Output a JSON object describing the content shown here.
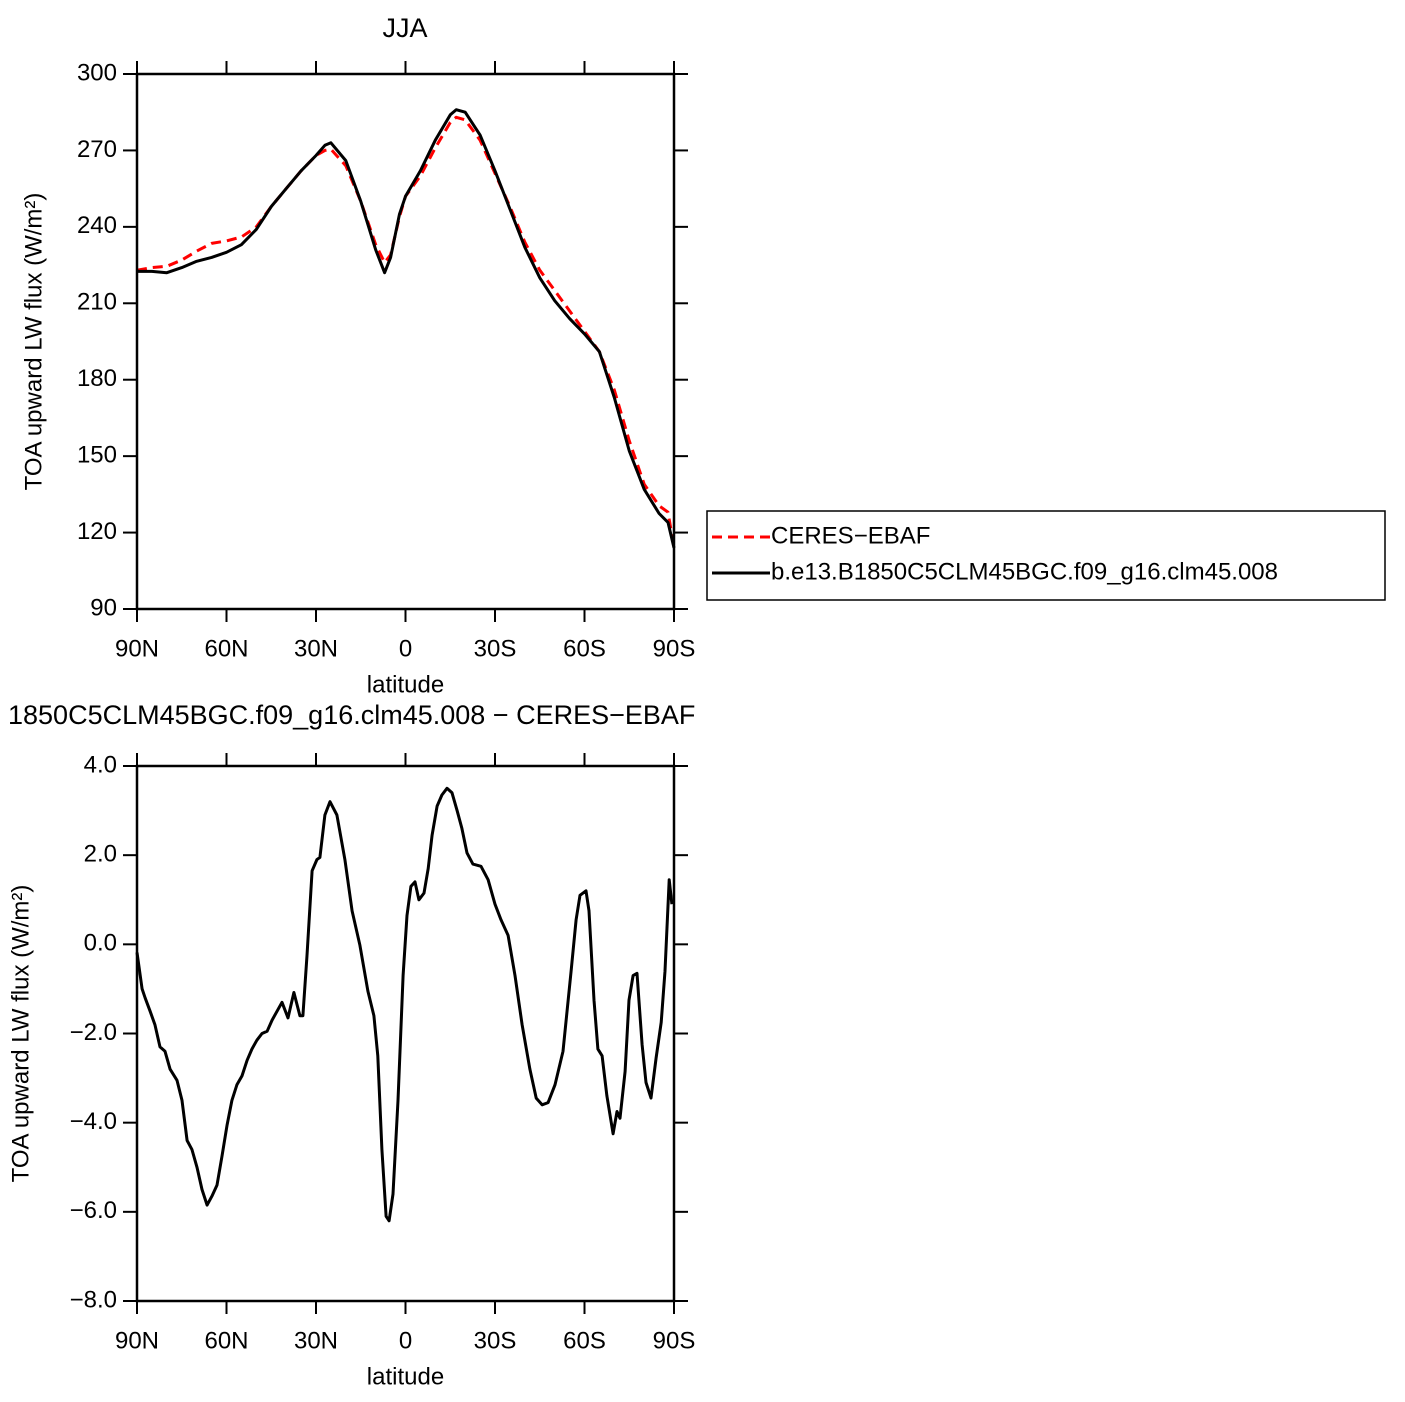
{
  "chart_data": [
    {
      "type": "line",
      "title": "JJA",
      "xlabel": "latitude",
      "ylabel": "TOA upward LW flux (W/m²)",
      "x": [
        90,
        85,
        80,
        75,
        70,
        65,
        60,
        55,
        50,
        45,
        40,
        35,
        30,
        27,
        25,
        20,
        15,
        10,
        7,
        5,
        2,
        0,
        -5,
        -10,
        -15,
        -17,
        -20,
        -25,
        -30,
        -35,
        -40,
        -45,
        -50,
        -55,
        -60,
        -65,
        -70,
        -75,
        -80,
        -85,
        -88,
        -90
      ],
      "series": [
        {
          "name": "CERES−EBAF",
          "color": "#ff0000",
          "line_style": "dashed",
          "values": [
            223,
            224,
            224.5,
            227,
            230.5,
            233.5,
            234.5,
            236,
            240,
            248,
            255,
            262,
            268,
            270,
            270.5,
            264,
            250,
            233,
            226,
            229,
            244,
            252,
            260,
            271,
            281,
            283,
            282,
            274,
            261,
            248,
            234,
            223,
            215,
            207,
            199,
            191,
            176,
            156,
            139,
            130.5,
            128,
            114
          ]
        },
        {
          "name": "b.e13.B1850C5CLM45BGC.f09_g16.clm45.008",
          "color": "#000000",
          "line_style": "solid",
          "values": [
            222.5,
            222.5,
            222,
            224,
            226.5,
            228,
            230,
            233,
            239,
            248,
            255,
            262,
            268,
            272,
            273,
            266,
            250,
            231,
            222,
            228,
            245,
            252,
            262,
            274,
            284,
            286,
            285,
            276,
            262,
            247,
            232,
            220,
            211,
            204,
            198,
            191,
            173,
            152,
            137,
            127.5,
            124,
            114
          ]
        }
      ],
      "xlim": [
        90,
        -90
      ],
      "xticks": [
        {
          "value": 90,
          "label": "90N"
        },
        {
          "value": 60,
          "label": "60N"
        },
        {
          "value": 30,
          "label": "30N"
        },
        0,
        {
          "value": -30,
          "label": "30S"
        },
        {
          "value": -60,
          "label": "60S"
        },
        {
          "value": -90,
          "label": "90S"
        }
      ],
      "ylim": [
        90,
        300
      ],
      "yticks": [
        90,
        120,
        150,
        180,
        210,
        240,
        270,
        300
      ]
    },
    {
      "type": "line",
      "title": "1850C5CLM45BGC.f09_g16.clm45.008 − CERES−EBAF",
      "xlabel": "latitude",
      "ylabel": "TOA upward LW flux (W/m²)",
      "x": [
        90,
        88.3,
        87.3,
        85.6,
        84,
        82.3,
        80.6,
        78.9,
        76.6,
        74.9,
        73.2,
        71.6,
        69.9,
        68.2,
        66.5,
        64.9,
        63.2,
        61.5,
        59.8,
        58.2,
        56.5,
        54.8,
        53.1,
        51.5,
        49.8,
        48.1,
        46.4,
        44.7,
        41.4,
        39.4,
        37.4,
        35.4,
        34.4,
        33.0,
        31.3,
        29.7,
        28.7,
        27.0,
        25.3,
        23.0,
        20.3,
        17.9,
        15.3,
        12.6,
        10.6,
        9.3,
        7.9,
        6.5,
        5.5,
        4.2,
        2.5,
        0.8,
        -0.5,
        -1.8,
        -3.2,
        -4.5,
        -6.2,
        -7.6,
        -8.9,
        -10.6,
        -12.2,
        -13.9,
        -15.6,
        -17.3,
        -18.9,
        -20.6,
        -22.6,
        -25.3,
        -27.7,
        -30.0,
        -32.0,
        -34.4,
        -36.7,
        -39.1,
        -41.7,
        -43.8,
        -45.8,
        -47.8,
        -50.1,
        -52.8,
        -55.5,
        -57.2,
        -58.5,
        -60.5,
        -61.5,
        -63.2,
        -64.5,
        -65.9,
        -67.5,
        -69.6,
        -70.9,
        -71.9,
        -73.6,
        -74.9,
        -76.3,
        -77.6,
        -79.3,
        -80.6,
        -82.3,
        -84.0,
        -85.7,
        -87.0,
        -88.4,
        -89.3
      ],
      "color": "#000000",
      "values": [
        -0.18,
        -1.0,
        -1.2,
        -1.5,
        -1.8,
        -2.3,
        -2.4,
        -2.8,
        -3.05,
        -3.5,
        -4.4,
        -4.6,
        -5.0,
        -5.5,
        -5.85,
        -5.65,
        -5.4,
        -4.75,
        -4.05,
        -3.5,
        -3.15,
        -2.95,
        -2.6,
        -2.35,
        -2.15,
        -2.0,
        -1.95,
        -1.7,
        -1.3,
        -1.65,
        -1.08,
        -1.6,
        -1.6,
        -0.25,
        1.65,
        1.9,
        1.95,
        2.9,
        3.2,
        2.9,
        1.9,
        0.75,
        -0.02,
        -1.05,
        -1.6,
        -2.5,
        -4.6,
        -6.1,
        -6.2,
        -5.6,
        -3.5,
        -0.7,
        0.65,
        1.3,
        1.4,
        1.0,
        1.15,
        1.7,
        2.45,
        3.1,
        3.35,
        3.5,
        3.4,
        3.0,
        2.6,
        2.05,
        1.8,
        1.75,
        1.45,
        0.9,
        0.55,
        0.2,
        -0.7,
        -1.8,
        -2.8,
        -3.45,
        -3.6,
        -3.55,
        -3.15,
        -2.4,
        -0.6,
        0.55,
        1.1,
        1.2,
        0.75,
        -1.25,
        -2.35,
        -2.5,
        -3.4,
        -4.25,
        -3.75,
        -3.9,
        -2.85,
        -1.25,
        -0.7,
        -0.65,
        -2.25,
        -3.1,
        -3.45,
        -2.55,
        -1.75,
        -0.6,
        1.45,
        0.9
      ],
      "xlim": [
        90,
        -90
      ],
      "xticks": [
        {
          "value": 90,
          "label": "90N"
        },
        {
          "value": 60,
          "label": "60N"
        },
        {
          "value": 30,
          "label": "30N"
        },
        0,
        {
          "value": -30,
          "label": "30S"
        },
        {
          "value": -60,
          "label": "60S"
        },
        {
          "value": -90,
          "label": "90S"
        }
      ],
      "ylim": [
        -8,
        4
      ],
      "yticks": [
        {
          "value": -8,
          "label": "−8.0"
        },
        {
          "value": -6,
          "label": "−6.0"
        },
        {
          "value": -4,
          "label": "−4.0"
        },
        {
          "value": -2,
          "label": "−2.0"
        },
        {
          "value": 0,
          "label": "0.0"
        },
        {
          "value": 2,
          "label": "2.0"
        },
        {
          "value": 4,
          "label": "4.0"
        }
      ]
    }
  ]
}
